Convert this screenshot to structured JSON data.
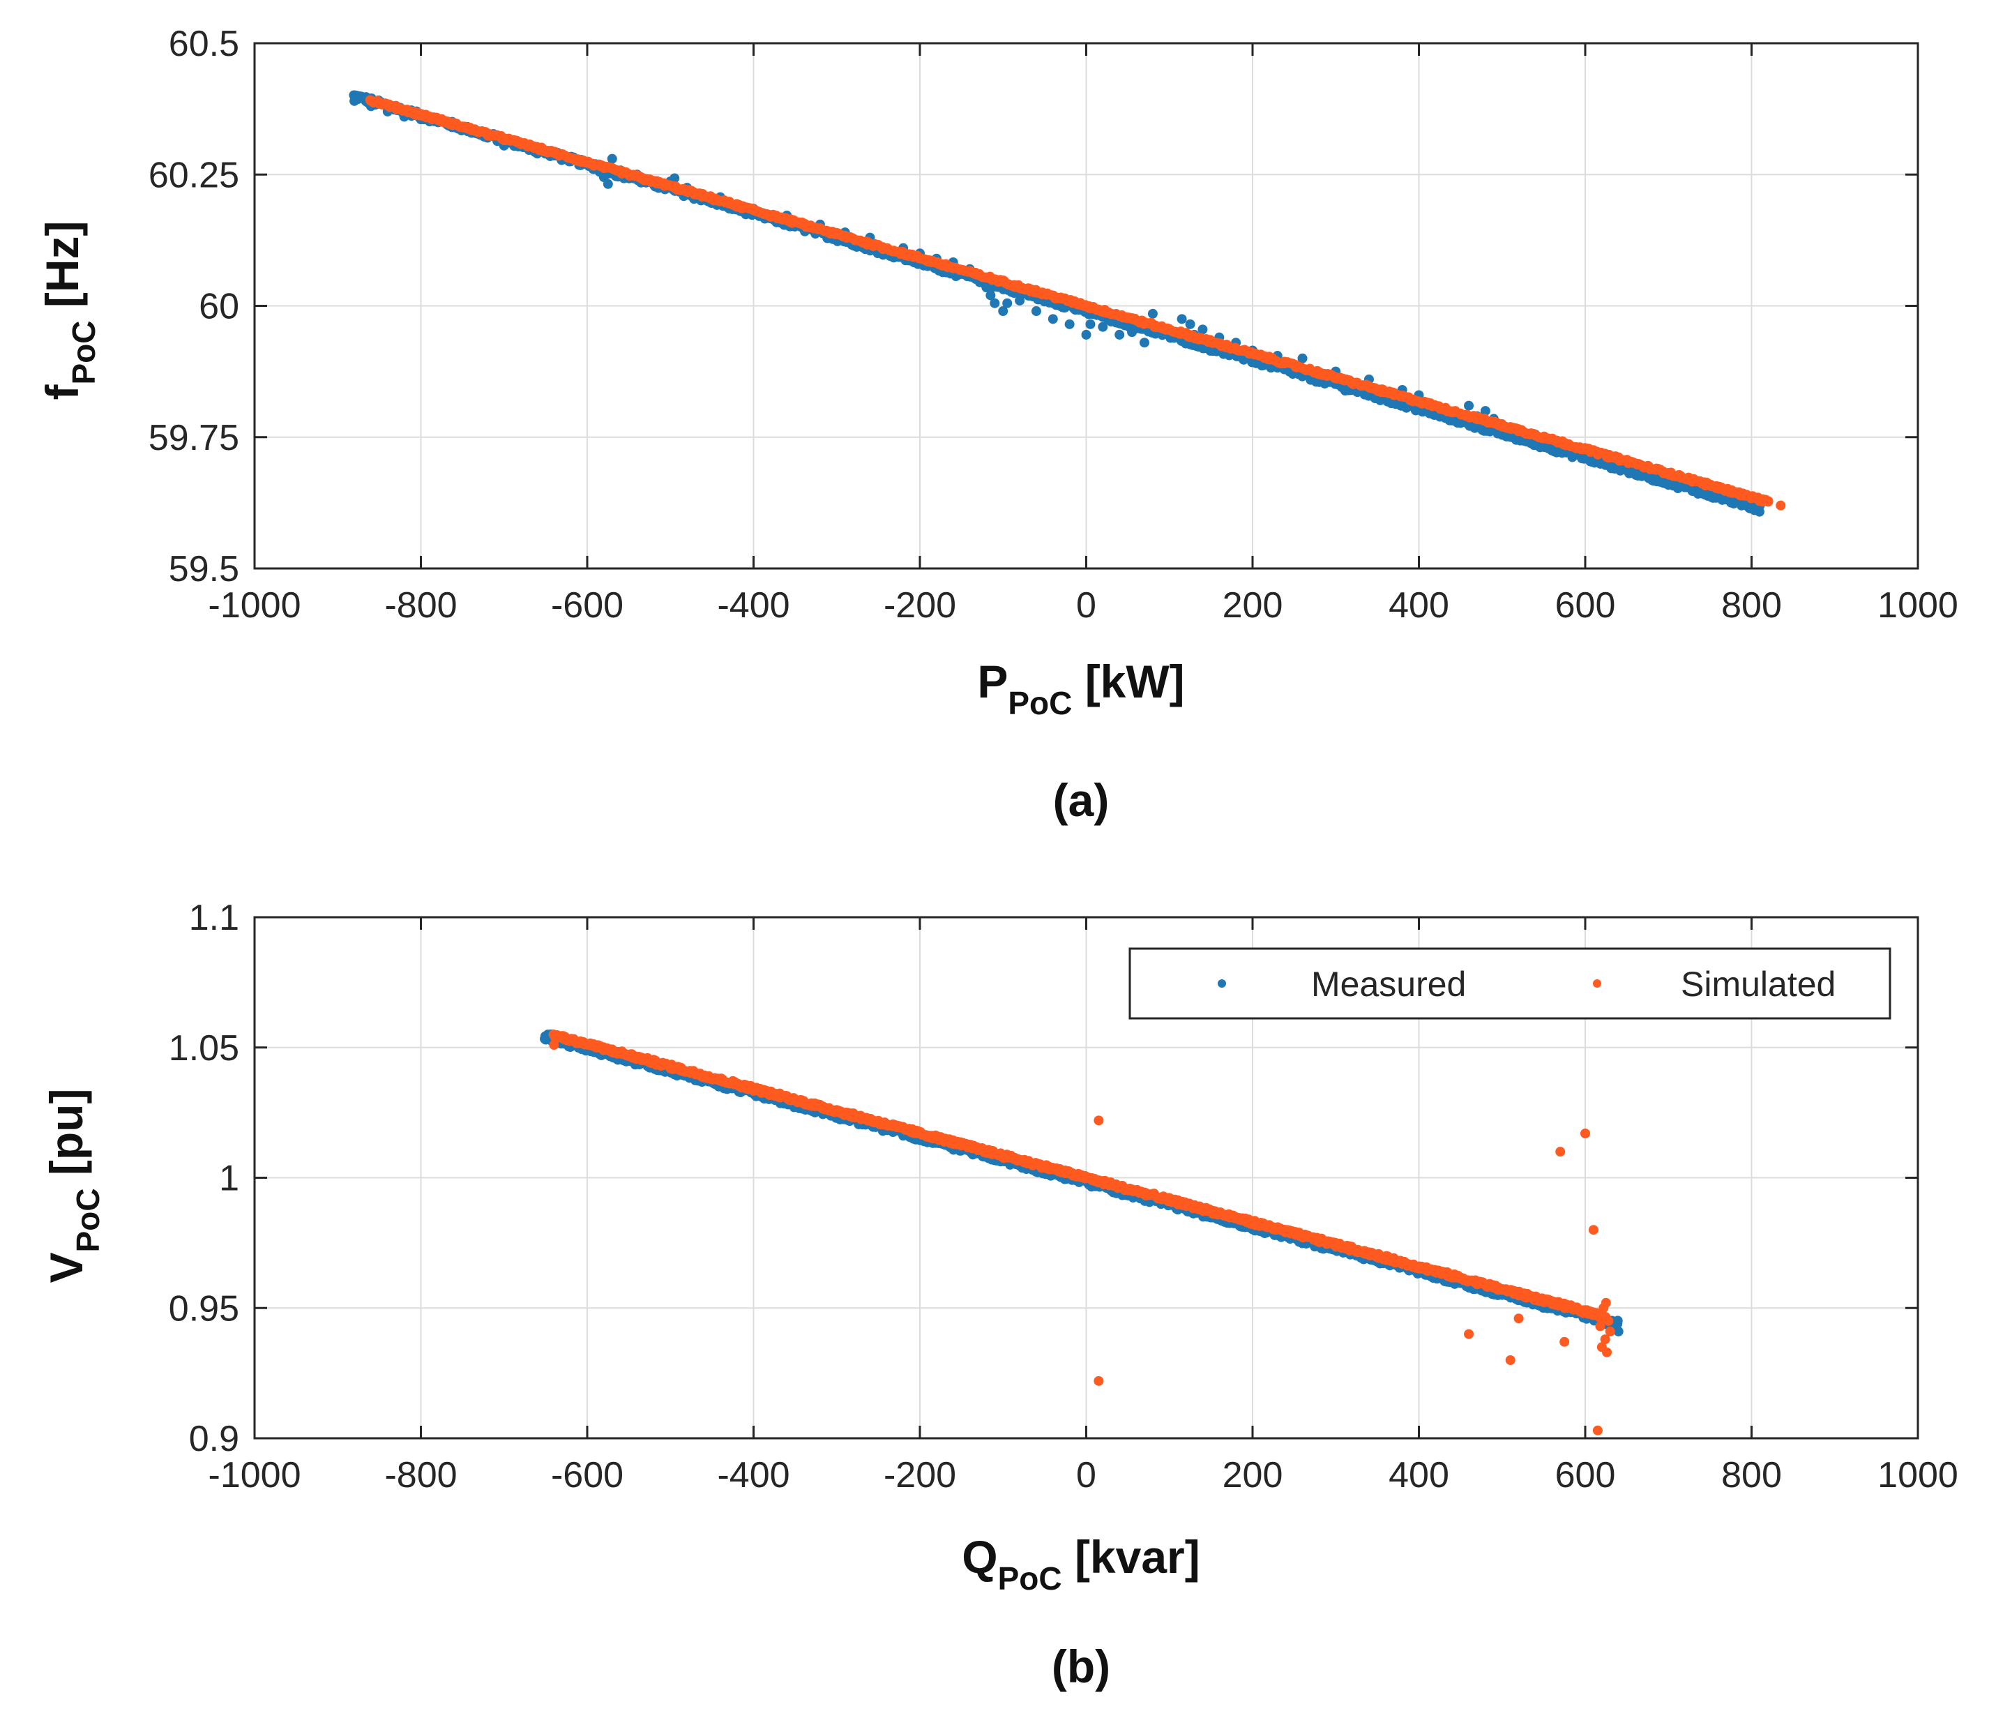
{
  "colors": {
    "measured": "#1f77b4",
    "simulated": "#ff5a1f"
  },
  "legend": {
    "measured_label": "Measured",
    "simulated_label": "Simulated",
    "location": "top-right"
  },
  "chart_data": [
    {
      "type": "scatter",
      "caption": "(a)",
      "xlabel": {
        "main": "P",
        "sub": "PoC",
        "unit": " [kW]"
      },
      "ylabel": {
        "main": "f",
        "sub": "PoC",
        "unit": " [Hz]"
      },
      "xlim": [
        -1000,
        1000
      ],
      "ylim": [
        59.5,
        60.5
      ],
      "xticks": [
        "-1000",
        "-800",
        "-600",
        "-400",
        "-200",
        "0",
        "200",
        "400",
        "600",
        "800",
        "1000"
      ],
      "yticks": [
        "59.5",
        "59.75",
        "60",
        "60.25",
        "60.5"
      ],
      "grid": true,
      "series": [
        {
          "name": "Measured",
          "color": "#1f77b4",
          "trend": {
            "x_start": -880,
            "x_end": 810,
            "slope": -0.000465,
            "intercept": 59.99,
            "spread": 0.006
          },
          "points": [
            [
              -880,
              60.39
            ],
            [
              -860,
              60.38
            ],
            [
              -840,
              60.37
            ],
            [
              -820,
              60.36
            ],
            [
              -800,
              60.355
            ],
            [
              -760,
              60.34
            ],
            [
              -720,
              60.32
            ],
            [
              -700,
              60.305
            ],
            [
              -660,
              60.29
            ],
            [
              -620,
              60.275
            ],
            [
              -590,
              60.27
            ],
            [
              -585,
              60.255
            ],
            [
              -580,
              60.245
            ],
            [
              -575,
              60.232
            ],
            [
              -570,
              60.28
            ],
            [
              -560,
              60.258
            ],
            [
              -540,
              60.25
            ],
            [
              -500,
              60.237
            ],
            [
              -495,
              60.243
            ],
            [
              -480,
              60.225
            ],
            [
              -440,
              60.207
            ],
            [
              -400,
              60.185
            ],
            [
              -360,
              60.172
            ],
            [
              -320,
              60.155
            ],
            [
              -290,
              60.14
            ],
            [
              -260,
              60.13
            ],
            [
              -220,
              60.11
            ],
            [
              -200,
              60.1
            ],
            [
              -180,
              60.09
            ],
            [
              -160,
              60.083
            ],
            [
              -140,
              60.07
            ],
            [
              -128,
              60.045
            ],
            [
              -120,
              60.035
            ],
            [
              -115,
              60.02
            ],
            [
              -110,
              60.005
            ],
            [
              -100,
              59.99
            ],
            [
              -95,
              60.005
            ],
            [
              -80,
              60.01
            ],
            [
              -60,
              59.99
            ],
            [
              -40,
              59.975
            ],
            [
              -20,
              59.965
            ],
            [
              0,
              59.945
            ],
            [
              5,
              59.965
            ],
            [
              20,
              59.96
            ],
            [
              30,
              59.97
            ],
            [
              40,
              59.945
            ],
            [
              45,
              59.975
            ],
            [
              55,
              59.95
            ],
            [
              60,
              59.96
            ],
            [
              70,
              59.93
            ],
            [
              80,
              59.985
            ],
            [
              90,
              59.955
            ],
            [
              100,
              59.945
            ],
            [
              110,
              59.94
            ],
            [
              115,
              59.975
            ],
            [
              125,
              59.965
            ],
            [
              130,
              59.945
            ],
            [
              140,
              59.955
            ],
            [
              160,
              59.94
            ],
            [
              180,
              59.93
            ],
            [
              200,
              59.915
            ],
            [
              230,
              59.905
            ],
            [
              260,
              59.9
            ],
            [
              300,
              59.875
            ],
            [
              340,
              59.86
            ],
            [
              380,
              59.84
            ],
            [
              400,
              59.83
            ],
            [
              430,
              59.805
            ],
            [
              440,
              59.79
            ],
            [
              460,
              59.81
            ],
            [
              470,
              59.79
            ],
            [
              480,
              59.8
            ],
            [
              490,
              59.785
            ],
            [
              500,
              59.77
            ],
            [
              540,
              59.755
            ],
            [
              580,
              59.735
            ],
            [
              620,
              59.715
            ],
            [
              660,
              59.695
            ],
            [
              700,
              59.675
            ],
            [
              740,
              59.655
            ],
            [
              770,
              59.64
            ],
            [
              790,
              59.625
            ],
            [
              800,
              59.615
            ],
            [
              810,
              59.62
            ]
          ]
        },
        {
          "name": "Simulated",
          "color": "#ff5a1f",
          "trend": {
            "x_start": -860,
            "x_end": 820,
            "slope": -0.000455,
            "intercept": 60.0,
            "spread": 0.003
          },
          "points": [
            [
              -860,
              60.39
            ],
            [
              -800,
              60.364
            ],
            [
              -700,
              60.319
            ],
            [
              -600,
              60.273
            ],
            [
              -500,
              60.228
            ],
            [
              -400,
              60.182
            ],
            [
              -300,
              60.137
            ],
            [
              -200,
              60.091
            ],
            [
              -100,
              60.046
            ],
            [
              0,
              60.0
            ],
            [
              100,
              59.955
            ],
            [
              200,
              59.909
            ],
            [
              300,
              59.864
            ],
            [
              400,
              59.818
            ],
            [
              500,
              59.773
            ],
            [
              600,
              59.727
            ],
            [
              700,
              59.682
            ],
            [
              800,
              59.636
            ],
            [
              820,
              59.627
            ],
            [
              835,
              59.62
            ]
          ]
        }
      ]
    },
    {
      "type": "scatter",
      "caption": "(b)",
      "xlabel": {
        "main": "Q",
        "sub": "PoC",
        "unit": " [kvar]"
      },
      "ylabel": {
        "main": "V",
        "sub": "PoC",
        "unit": " [pu]"
      },
      "xlim": [
        -1000,
        1000
      ],
      "ylim": [
        0.9,
        1.1
      ],
      "xticks": [
        "-1000",
        "-800",
        "-600",
        "-400",
        "-200",
        "0",
        "200",
        "400",
        "600",
        "800",
        "1000"
      ],
      "yticks": [
        "0.9",
        "0.95",
        "1",
        "1.05",
        "1.1"
      ],
      "grid": true,
      "legend": true,
      "series": [
        {
          "name": "Measured",
          "color": "#1f77b4",
          "trend": {
            "x_start": -650,
            "x_end": 640,
            "slope": -8.55e-05,
            "intercept": 0.9985,
            "spread": 0.0014
          },
          "points": [
            [
              -650,
              1.053
            ],
            [
              -600,
              1.049
            ],
            [
              -500,
              1.041
            ],
            [
              -400,
              1.033
            ],
            [
              -300,
              1.024
            ],
            [
              -200,
              1.016
            ],
            [
              -140,
              1.011
            ],
            [
              -100,
              1.008
            ],
            [
              0,
              0.9995
            ],
            [
              100,
              0.991
            ],
            [
              160,
              0.986
            ],
            [
              200,
              0.982
            ],
            [
              300,
              0.973
            ],
            [
              400,
              0.964
            ],
            [
              500,
              0.955
            ],
            [
              600,
              0.947
            ],
            [
              630,
              0.944
            ],
            [
              640,
              0.941
            ]
          ]
        },
        {
          "name": "Simulated",
          "color": "#ff5a1f",
          "trend": {
            "x_start": -640,
            "x_end": 625,
            "slope": -8.55e-05,
            "intercept": 1.0,
            "spread": 0.0008
          },
          "points": [
            [
              -640,
              1.051
            ],
            [
              -500,
              1.042
            ],
            [
              -400,
              1.034
            ],
            [
              -300,
              1.026
            ],
            [
              -200,
              1.017
            ],
            [
              -100,
              1.008
            ],
            [
              0,
              1.0
            ],
            [
              100,
              0.992
            ],
            [
              200,
              0.983
            ],
            [
              300,
              0.975
            ],
            [
              400,
              0.966
            ],
            [
              500,
              0.957
            ],
            [
              600,
              0.949
            ],
            [
              15,
              1.022
            ],
            [
              15,
              0.922
            ],
            [
              460,
              0.94
            ],
            [
              510,
              0.93
            ],
            [
              520,
              0.946
            ],
            [
              570,
              1.01
            ],
            [
              575,
              0.937
            ],
            [
              600,
              1.017
            ],
            [
              610,
              0.98
            ],
            [
              615,
              0.903
            ],
            [
              612,
              0.948
            ],
            [
              620,
              0.935
            ],
            [
              622,
              0.95
            ],
            [
              625,
              0.952
            ],
            [
              628,
              0.945
            ],
            [
              624,
              0.938
            ],
            [
              630,
              0.941
            ],
            [
              618,
              0.943
            ],
            [
              626,
              0.933
            ]
          ]
        }
      ]
    }
  ]
}
